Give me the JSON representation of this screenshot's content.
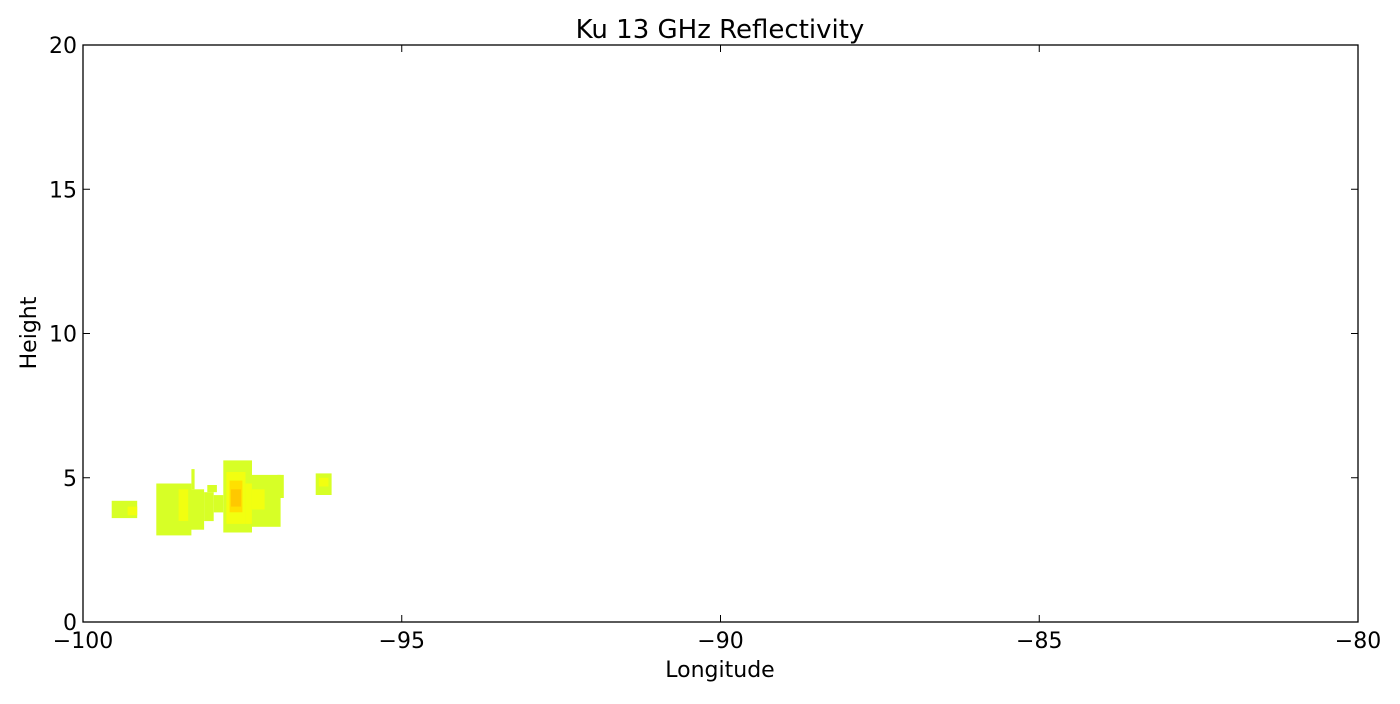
{
  "chart_data": {
    "type": "heatmap",
    "title": "Ku 13 GHz Reflectivity",
    "xlabel": "Longitude",
    "ylabel": "Height",
    "xlim": [
      -100,
      -80
    ],
    "ylim": [
      0,
      20
    ],
    "x_ticks": [
      -100,
      -95,
      -90,
      -85,
      -80
    ],
    "y_ticks": [
      0,
      5,
      10,
      15,
      20
    ],
    "x_tick_labels": [
      "−100",
      "−95",
      "−90",
      "−85",
      "−80"
    ],
    "y_tick_labels": [
      "0",
      "5",
      "10",
      "15",
      "20"
    ],
    "grid": false,
    "colors": {
      "low": "#d7ff26",
      "mid": "#f2ff10",
      "high": "#ffe000",
      "peak": "#ffc800"
    },
    "cells": [
      {
        "x0": -99.55,
        "x1": -99.15,
        "y0": 3.6,
        "y1": 4.2,
        "level": "low"
      },
      {
        "x0": -99.3,
        "x1": -99.15,
        "y0": 3.7,
        "y1": 4.0,
        "level": "mid"
      },
      {
        "x0": -98.85,
        "x1": -98.3,
        "y0": 3.0,
        "y1": 4.8,
        "level": "low"
      },
      {
        "x0": -98.8,
        "x1": -98.55,
        "y0": 3.2,
        "y1": 3.6,
        "level": "low"
      },
      {
        "x0": -98.5,
        "x1": -98.3,
        "y0": 3.5,
        "y1": 4.6,
        "level": "mid"
      },
      {
        "x0": -98.35,
        "x1": -98.1,
        "y0": 3.2,
        "y1": 4.6,
        "level": "low"
      },
      {
        "x0": -98.3,
        "x1": -98.25,
        "y0": 4.6,
        "y1": 5.3,
        "level": "low"
      },
      {
        "x0": -98.1,
        "x1": -97.95,
        "y0": 3.5,
        "y1": 4.5,
        "level": "low"
      },
      {
        "x0": -98.05,
        "x1": -97.9,
        "y0": 4.5,
        "y1": 4.75,
        "level": "low"
      },
      {
        "x0": -97.95,
        "x1": -97.8,
        "y0": 3.8,
        "y1": 4.4,
        "level": "low"
      },
      {
        "x0": -97.8,
        "x1": -97.35,
        "y0": 3.1,
        "y1": 5.6,
        "level": "low"
      },
      {
        "x0": -97.75,
        "x1": -97.45,
        "y0": 3.4,
        "y1": 5.2,
        "level": "mid"
      },
      {
        "x0": -97.7,
        "x1": -97.5,
        "y0": 3.8,
        "y1": 4.9,
        "level": "high"
      },
      {
        "x0": -97.68,
        "x1": -97.52,
        "y0": 4.0,
        "y1": 4.6,
        "level": "peak"
      },
      {
        "x0": -97.45,
        "x1": -97.3,
        "y0": 3.4,
        "y1": 4.8,
        "level": "mid"
      },
      {
        "x0": -97.35,
        "x1": -96.9,
        "y0": 3.3,
        "y1": 5.1,
        "level": "low"
      },
      {
        "x0": -97.35,
        "x1": -97.15,
        "y0": 3.9,
        "y1": 4.6,
        "level": "mid"
      },
      {
        "x0": -96.95,
        "x1": -96.85,
        "y0": 4.3,
        "y1": 5.1,
        "level": "low"
      },
      {
        "x0": -96.35,
        "x1": -96.1,
        "y0": 4.4,
        "y1": 5.15,
        "level": "low"
      },
      {
        "x0": -96.3,
        "x1": -96.15,
        "y0": 4.7,
        "y1": 5.0,
        "level": "mid"
      }
    ]
  }
}
